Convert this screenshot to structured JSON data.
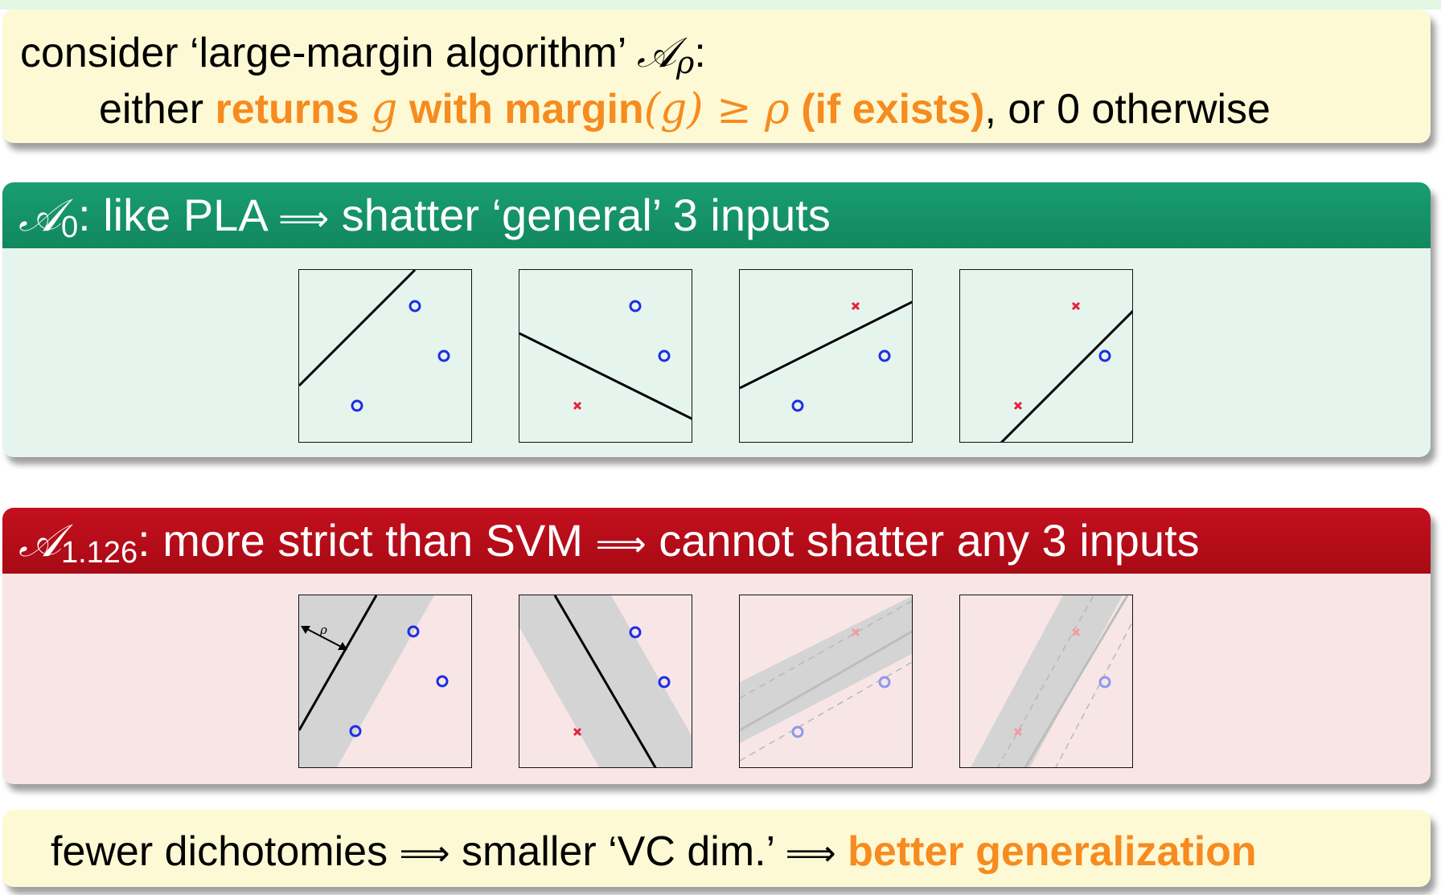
{
  "box_consider": {
    "line1_prefix": "consider ‘large-margin algorithm’ ",
    "line1_symbol": "𝒜",
    "line1_sub": "ρ",
    "line1_suffix": ":",
    "line2_prefix": "either ",
    "line2_returns": "returns ",
    "line2_g": "g",
    "line2_with_margin": " with margin",
    "line2_arg": "(g) ≥ ρ",
    "line2_if_exists": " (if exists)",
    "line2_suffix": ", or 0 otherwise"
  },
  "box_a0": {
    "header_symbol": "𝒜",
    "header_sub": "0",
    "header_text": ": like PLA ",
    "header_arrow": "⟹",
    "header_text2": " shatter ‘general’ 3 inputs"
  },
  "box_a1126": {
    "header_symbol": "𝒜",
    "header_sub": "1.126",
    "header_text": ": more strict than SVM ",
    "header_arrow": "⟹",
    "header_text2": " cannot shatter any 3 inputs",
    "rho_label": "ρ"
  },
  "box_conclusion": {
    "part1": "fewer dichotomies ",
    "arrow1": "⟹",
    "part2": " smaller ‘VC dim.’ ",
    "arrow2": "⟹",
    "part3": " better generalization"
  },
  "colors": {
    "circle": "#1b2fe6",
    "cross": "#e8213a",
    "orange": "#f68b1f",
    "green_header": "#16936a",
    "red_header": "#b80d18",
    "margin_band": "#d4d4d4"
  },
  "panels_a0": [
    {
      "labels": [
        "o",
        "o",
        "o"
      ]
    },
    {
      "labels": [
        "o",
        "o",
        "x"
      ]
    },
    {
      "labels": [
        "x",
        "o",
        "o"
      ]
    },
    {
      "labels": [
        "x",
        "o",
        "x"
      ]
    }
  ],
  "panels_a1126": [
    {
      "labels": [
        "o",
        "o",
        "o"
      ],
      "faded": false
    },
    {
      "labels": [
        "o",
        "o",
        "x"
      ],
      "faded": false
    },
    {
      "labels": [
        "x",
        "o",
        "o"
      ],
      "faded": true
    },
    {
      "labels": [
        "x",
        "o",
        "x"
      ],
      "faded": true
    }
  ]
}
